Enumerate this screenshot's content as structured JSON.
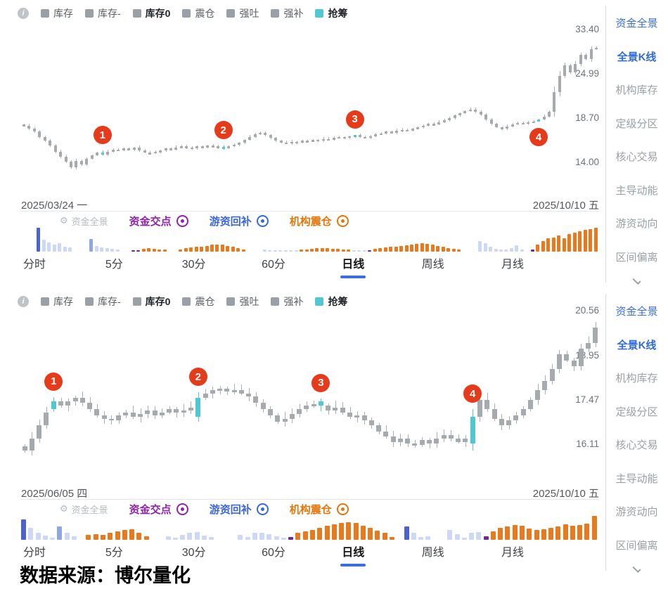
{
  "icons": {
    "info": "i",
    "gear": "⚙"
  },
  "colors": {
    "accent_blue": "#3b6ee0",
    "sidebar_blue": "#3a6edb",
    "cyan": "#4ec9d4",
    "marker_red": "#e63a1b",
    "candle_gray": "#a5aaaf",
    "bar_palette": {
      "b": "#4a63d0",
      "m": "#8fa6e6",
      "l": "#cdd9f4",
      "o": "#e8791c",
      "p": "#6d2a96"
    }
  },
  "footer": {
    "source_label": "数据来源：博尔量化"
  },
  "panels": [
    {
      "legend": [
        {
          "label": "库存"
        },
        {
          "label": "库存-"
        },
        {
          "label": "库存0"
        },
        {
          "label": "震仓"
        },
        {
          "label": "强吐"
        },
        {
          "label": "强补"
        },
        {
          "label": "抢筹"
        }
      ],
      "fund_legend": {
        "title": "资金全景",
        "items": [
          {
            "label": "资金交点",
            "color": "#8e25a8"
          },
          {
            "label": "游资回补",
            "color": "#3a66e0"
          },
          {
            "label": "机构震仓",
            "color": "#e2770d"
          }
        ]
      },
      "dates": {
        "start": "2025/03/24 一",
        "end": "2025/10/10 五"
      },
      "tabs": [
        {
          "label": "分时",
          "active": false
        },
        {
          "label": "5分",
          "active": false
        },
        {
          "label": "30分",
          "active": false
        },
        {
          "label": "60分",
          "active": false
        },
        {
          "label": "日线",
          "active": true
        },
        {
          "label": "周线",
          "active": false
        },
        {
          "label": "月线",
          "active": false
        }
      ],
      "sidebar": [
        {
          "label": "资金全景"
        },
        {
          "label": "全景K线"
        },
        {
          "label": "机构库存"
        },
        {
          "label": "定级分区"
        },
        {
          "label": "核心交易"
        },
        {
          "label": "主导动能"
        },
        {
          "label": "游资动向"
        },
        {
          "label": "区间偏离"
        }
      ],
      "chart_data": {
        "type": "candlestick",
        "period": "日线",
        "log_scale": true,
        "y_ticks": [
          {
            "label": "33.40",
            "price": 33.4
          },
          {
            "label": "24.99",
            "price": 24.99
          },
          {
            "label": "18.70",
            "price": 18.7
          },
          {
            "label": "14.00",
            "price": 14.0
          }
        ],
        "axis": {
          "p_low": 14.0,
          "y_low": 202,
          "p_high": 33.4,
          "y_high": 13
        },
        "closes": [
          17.9,
          17.5,
          17.2,
          16.6,
          16.2,
          15.7,
          15.1,
          14.6,
          14.1,
          13.6,
          14.2,
          13.9,
          14.4,
          14.7,
          15.0,
          14.8,
          15.1,
          15.3,
          15.2,
          15.4,
          15.3,
          15.5,
          15.2,
          15.0,
          14.9,
          15.1,
          15.2,
          15.4,
          15.3,
          15.5,
          15.6,
          15.5,
          15.4,
          15.6,
          15.5,
          15.7,
          15.6,
          15.5,
          15.4,
          15.6,
          15.8,
          16.0,
          16.3,
          16.6,
          16.9,
          17.1,
          16.8,
          16.5,
          16.2,
          16.0,
          15.9,
          16.1,
          16.0,
          16.2,
          16.1,
          16.3,
          16.2,
          16.4,
          16.3,
          16.5,
          16.6,
          16.5,
          16.7,
          16.8,
          16.6,
          16.5,
          16.7,
          16.9,
          17.0,
          17.2,
          17.1,
          17.3,
          17.4,
          17.3,
          17.5,
          17.7,
          17.9,
          18.1,
          18.0,
          18.3,
          18.5,
          18.8,
          19.1,
          19.4,
          19.7,
          19.9,
          19.6,
          19.2,
          18.6,
          18.1,
          17.7,
          17.5,
          17.8,
          18.0,
          18.2,
          18.1,
          18.3,
          18.4,
          18.6,
          19.0,
          19.6,
          22.3,
          24.8,
          26.5,
          25.4,
          26.8,
          28.4,
          27.6,
          29.5,
          29.8
        ],
        "opens_override": {
          "15": 15.0,
          "38": 15.55,
          "63": 16.65,
          "98": 18.45
        },
        "highlights": [
          15,
          38,
          63,
          98
        ],
        "markers": [
          {
            "index": 15,
            "label": "1",
            "dir": "above"
          },
          {
            "index": 38,
            "label": "2",
            "dir": "above"
          },
          {
            "index": 63,
            "label": "3",
            "dir": "above"
          },
          {
            "index": 98,
            "label": "4",
            "dir": "below"
          }
        ]
      },
      "volume_bars": {
        "type": "bar",
        "bars": [
          null,
          null,
          null,
          [
            1,
            "b"
          ],
          [
            0.5,
            "l"
          ],
          [
            0.38,
            "l"
          ],
          [
            0.3,
            "l"
          ],
          [
            0.34,
            "l"
          ],
          [
            0.22,
            "l"
          ],
          [
            0.18,
            "l"
          ],
          null,
          null,
          null,
          [
            0.52,
            "m"
          ],
          [
            0.25,
            "l"
          ],
          [
            0.18,
            "l"
          ],
          [
            0.14,
            "l"
          ],
          [
            0.12,
            "l"
          ],
          [
            0.1,
            "l"
          ],
          null,
          null,
          [
            0.07,
            "p"
          ],
          [
            0.06,
            "p"
          ],
          [
            0.12,
            "o"
          ],
          [
            0.15,
            "o"
          ],
          [
            0.12,
            "o"
          ],
          [
            0.1,
            "o"
          ],
          [
            0.08,
            "o"
          ],
          null,
          null,
          [
            0.1,
            "o"
          ],
          [
            0.14,
            "o"
          ],
          [
            0.17,
            "o"
          ],
          [
            0.2,
            "o"
          ],
          [
            0.22,
            "o"
          ],
          [
            0.25,
            "o"
          ],
          [
            0.28,
            "o"
          ],
          [
            0.3,
            "o"
          ],
          [
            0.28,
            "o"
          ],
          [
            0.25,
            "o"
          ],
          [
            0.2,
            "o"
          ],
          [
            0.15,
            "o"
          ],
          [
            0.1,
            "o"
          ],
          null,
          null,
          null,
          [
            0.08,
            "l"
          ],
          [
            0.06,
            "l"
          ],
          [
            0.05,
            "l"
          ],
          [
            0.06,
            "l"
          ],
          [
            0.05,
            "l"
          ],
          [
            0.04,
            "l"
          ],
          [
            0.05,
            "l"
          ],
          [
            0.08,
            "o"
          ],
          [
            0.1,
            "o"
          ],
          [
            0.12,
            "o"
          ],
          [
            0.14,
            "o"
          ],
          [
            0.16,
            "o"
          ],
          [
            0.15,
            "o"
          ],
          [
            0.13,
            "o"
          ],
          [
            0.12,
            "o"
          ],
          [
            0.1,
            "o"
          ],
          [
            0.08,
            "o"
          ],
          [
            0.05,
            "l"
          ],
          [
            0.04,
            "l"
          ],
          [
            0.05,
            "l"
          ],
          [
            0.06,
            "p"
          ],
          [
            0.12,
            "o"
          ],
          [
            0.15,
            "o"
          ],
          [
            0.18,
            "o"
          ],
          [
            0.2,
            "o"
          ],
          [
            0.22,
            "o"
          ],
          [
            0.24,
            "o"
          ],
          [
            0.27,
            "o"
          ],
          [
            0.3,
            "o"
          ],
          [
            0.33,
            "o"
          ],
          [
            0.35,
            "o"
          ],
          [
            0.32,
            "o"
          ],
          [
            0.28,
            "o"
          ],
          [
            0.24,
            "o"
          ],
          [
            0.2,
            "o"
          ],
          [
            0.16,
            "o"
          ],
          [
            0.12,
            "o"
          ],
          [
            0.1,
            "o"
          ],
          null,
          null,
          null,
          [
            0.45,
            "l"
          ],
          [
            0.35,
            "l"
          ],
          [
            0.22,
            "l"
          ],
          [
            0.12,
            "l"
          ],
          [
            0.08,
            "l"
          ],
          [
            0.1,
            "l"
          ],
          [
            0.14,
            "l"
          ],
          [
            0.26,
            "l"
          ],
          [
            0.1,
            "l"
          ],
          null,
          [
            0.08,
            "p"
          ],
          [
            0.3,
            "o"
          ],
          [
            0.45,
            "o"
          ],
          [
            0.55,
            "o"
          ],
          [
            0.6,
            "o"
          ],
          [
            0.68,
            "o"
          ],
          [
            0.55,
            "o"
          ],
          [
            0.75,
            "o"
          ],
          [
            0.8,
            "o"
          ],
          [
            0.85,
            "o"
          ],
          [
            0.9,
            "o"
          ],
          [
            0.95,
            "o"
          ],
          [
            1,
            "o"
          ]
        ]
      }
    },
    {
      "legend": [
        {
          "label": "库存"
        },
        {
          "label": "库存-"
        },
        {
          "label": "库存0"
        },
        {
          "label": "震仓"
        },
        {
          "label": "强吐"
        },
        {
          "label": "强补"
        },
        {
          "label": "抢筹"
        }
      ],
      "fund_legend": {
        "title": "资金全景",
        "items": [
          {
            "label": "资金交点",
            "color": "#8e25a8"
          },
          {
            "label": "游资回补",
            "color": "#3a66e0"
          },
          {
            "label": "机构震仓",
            "color": "#e2770d"
          }
        ]
      },
      "dates": {
        "start": "2025/06/05 四",
        "end": "2025/10/10 五"
      },
      "tabs": [
        {
          "label": "分时",
          "active": false
        },
        {
          "label": "5分",
          "active": false
        },
        {
          "label": "30分",
          "active": false
        },
        {
          "label": "60分",
          "active": false
        },
        {
          "label": "日线",
          "active": true
        },
        {
          "label": "周线",
          "active": false
        },
        {
          "label": "月线",
          "active": false
        }
      ],
      "sidebar": [
        {
          "label": "资金全景"
        },
        {
          "label": "全景K线"
        },
        {
          "label": "机构库存"
        },
        {
          "label": "定级分区"
        },
        {
          "label": "核心交易"
        },
        {
          "label": "主导动能"
        },
        {
          "label": "游资动向"
        },
        {
          "label": "区间偏离"
        }
      ],
      "chart_data": {
        "type": "candlestick",
        "period": "日线",
        "log_scale": true,
        "y_ticks": [
          {
            "label": "20.56",
            "price": 20.56
          },
          {
            "label": "18.95",
            "price": 18.95
          },
          {
            "label": "17.47",
            "price": 17.47
          },
          {
            "label": "16.11",
            "price": 16.11
          }
        ],
        "axis": {
          "p_low": 16.11,
          "y_low": 193,
          "p_high": 20.56,
          "y_high": 3
        },
        "closes": [
          15.95,
          16.3,
          16.7,
          17.1,
          17.45,
          17.3,
          17.45,
          17.55,
          17.4,
          17.2,
          17.0,
          16.9,
          16.85,
          17.0,
          17.1,
          16.95,
          17.05,
          17.15,
          17.0,
          17.1,
          17.2,
          17.1,
          17.15,
          17.25,
          17.55,
          17.7,
          17.8,
          17.85,
          17.75,
          17.8,
          17.7,
          17.6,
          17.4,
          17.2,
          17.0,
          16.8,
          16.9,
          17.05,
          17.2,
          17.3,
          17.35,
          17.3,
          17.15,
          17.25,
          17.1,
          16.95,
          17.0,
          16.85,
          16.7,
          16.5,
          16.35,
          16.2,
          16.3,
          16.15,
          16.1,
          16.25,
          16.15,
          16.3,
          16.4,
          16.3,
          16.2,
          16.3,
          16.95,
          17.5,
          17.2,
          16.9,
          16.7,
          16.85,
          17.0,
          17.2,
          17.5,
          17.8,
          18.1,
          18.5,
          19.0,
          18.8,
          18.6,
          19.2,
          19.4,
          19.95
        ],
        "opens_override": {
          "4": 17.2,
          "24": 16.95,
          "41": 17.45,
          "62": 16.15
        },
        "highlights": [
          4,
          24,
          41,
          62
        ],
        "markers": [
          {
            "index": 4,
            "label": "1",
            "dir": "above"
          },
          {
            "index": 24,
            "label": "2",
            "dir": "above"
          },
          {
            "index": 41,
            "label": "3",
            "dir": "above"
          },
          {
            "index": 62,
            "label": "4",
            "dir": "above"
          }
        ]
      },
      "volume_bars": {
        "type": "bar",
        "bars": [
          [
            0.85,
            "b"
          ],
          [
            0.5,
            "l"
          ],
          [
            0.3,
            "l"
          ],
          [
            0.18,
            "l"
          ],
          [
            0.1,
            "l"
          ],
          [
            0.55,
            "m"
          ],
          [
            0.3,
            "l"
          ],
          [
            0.15,
            "l"
          ],
          null,
          [
            0.2,
            "o"
          ],
          [
            0.25,
            "o"
          ],
          [
            0.22,
            "o"
          ],
          [
            0.28,
            "o"
          ],
          [
            0.35,
            "o"
          ],
          [
            0.42,
            "o"
          ],
          [
            0.45,
            "o"
          ],
          [
            0.3,
            "o"
          ],
          [
            0.15,
            "o"
          ],
          null,
          null,
          [
            0.15,
            "l"
          ],
          [
            0.1,
            "l"
          ],
          [
            0.22,
            "l"
          ],
          [
            0.3,
            "l"
          ],
          [
            0.32,
            "l"
          ],
          [
            0.18,
            "l"
          ],
          [
            0.12,
            "l"
          ],
          null,
          null,
          null,
          [
            0.2,
            "l"
          ],
          [
            0.12,
            "l"
          ],
          [
            0.28,
            "l"
          ],
          [
            0.3,
            "l"
          ],
          [
            0.25,
            "l"
          ],
          [
            0.15,
            "l"
          ],
          [
            0.1,
            "l"
          ],
          [
            0.12,
            "p"
          ],
          [
            0.3,
            "o"
          ],
          [
            0.35,
            "o"
          ],
          [
            0.4,
            "o"
          ],
          [
            0.5,
            "o"
          ],
          [
            0.58,
            "o"
          ],
          [
            0.65,
            "o"
          ],
          [
            0.72,
            "o"
          ],
          [
            0.75,
            "o"
          ],
          [
            0.7,
            "o"
          ],
          [
            0.6,
            "o"
          ],
          [
            0.5,
            "o"
          ],
          [
            0.38,
            "o"
          ],
          [
            0.28,
            "o"
          ],
          [
            0.12,
            "o"
          ],
          null,
          [
            0.55,
            "b"
          ],
          [
            0.28,
            "l"
          ],
          [
            0.12,
            "l"
          ],
          [
            0.14,
            "l"
          ],
          null,
          null,
          [
            0.4,
            "l"
          ],
          [
            0.25,
            "l"
          ],
          [
            0.08,
            "l"
          ],
          [
            0.28,
            "l"
          ],
          [
            0.33,
            "l"
          ],
          [
            0.15,
            "p"
          ],
          [
            0.35,
            "o"
          ],
          [
            0.5,
            "o"
          ],
          [
            0.55,
            "o"
          ],
          [
            0.62,
            "o"
          ],
          [
            0.58,
            "o"
          ],
          [
            0.48,
            "o"
          ],
          [
            0.42,
            "o"
          ],
          [
            0.45,
            "o"
          ],
          [
            0.5,
            "o"
          ],
          [
            0.55,
            "o"
          ],
          [
            0.65,
            "o"
          ],
          [
            0.6,
            "o"
          ],
          [
            0.62,
            "o"
          ],
          [
            0.68,
            "o"
          ],
          [
            1,
            "o"
          ]
        ]
      }
    }
  ]
}
